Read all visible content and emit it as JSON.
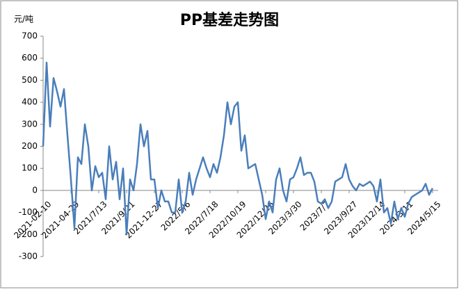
{
  "chart_data": {
    "type": "line",
    "title": "PP基差走势图",
    "y_label": "元/吨",
    "categories": [
      "2021-02-10",
      null,
      null,
      null,
      null,
      null,
      null,
      null,
      "2021-04-29",
      null,
      null,
      null,
      null,
      null,
      null,
      null,
      "2021/7/13",
      null,
      null,
      null,
      null,
      null,
      null,
      null,
      "2021/9/21",
      null,
      null,
      null,
      null,
      null,
      null,
      null,
      "2021-12-27",
      null,
      null,
      null,
      null,
      null,
      null,
      null,
      "2022/5/6",
      null,
      null,
      null,
      null,
      null,
      null,
      null,
      "2022/7/18",
      null,
      null,
      null,
      null,
      null,
      null,
      null,
      "2022/10/19",
      null,
      null,
      null,
      null,
      null,
      null,
      null,
      "2022/12/26",
      null,
      null,
      null,
      null,
      null,
      null,
      null,
      "2023/3/30",
      null,
      null,
      null,
      null,
      null,
      null,
      null,
      "2023/7/7",
      null,
      null,
      null,
      null,
      null,
      null,
      null,
      "2023/9/27",
      null,
      null,
      null,
      null,
      null,
      null,
      null,
      "2023/12/14",
      null,
      null,
      null,
      null,
      null,
      null,
      null,
      "2024/3/11",
      null,
      null,
      null,
      null,
      null,
      null,
      null,
      "2024/5/15"
    ],
    "series": [
      {
        "color": "#4a7ebb",
        "values": [
          200,
          580,
          290,
          510,
          450,
          380,
          460,
          250,
          50,
          -170,
          150,
          120,
          300,
          200,
          0,
          110,
          60,
          80,
          -40,
          200,
          50,
          130,
          -40,
          100,
          -200,
          50,
          0,
          120,
          300,
          200,
          270,
          50,
          50,
          -80,
          0,
          -50,
          -50,
          -100,
          -100,
          50,
          -100,
          -50,
          80,
          -20,
          50,
          100,
          150,
          100,
          60,
          120,
          80,
          150,
          250,
          400,
          300,
          380,
          400,
          180,
          250,
          100,
          110,
          120,
          50,
          -20,
          -130,
          -50,
          -100,
          50,
          100,
          0,
          -50,
          50,
          60,
          100,
          150,
          70,
          80,
          80,
          40,
          -50,
          -60,
          -40,
          -80,
          -50,
          40,
          50,
          60,
          120,
          50,
          20,
          0,
          30,
          20,
          30,
          40,
          20,
          -50,
          50,
          -100,
          -80,
          -150,
          -50,
          -130,
          -80,
          -120,
          -60,
          -30,
          -20,
          -10,
          0,
          30,
          -20,
          10
        ]
      }
    ],
    "ylim": [
      -300,
      700
    ],
    "yticks": [
      -300,
      -200,
      -100,
      0,
      100,
      200,
      300,
      400,
      500,
      600,
      700
    ]
  }
}
